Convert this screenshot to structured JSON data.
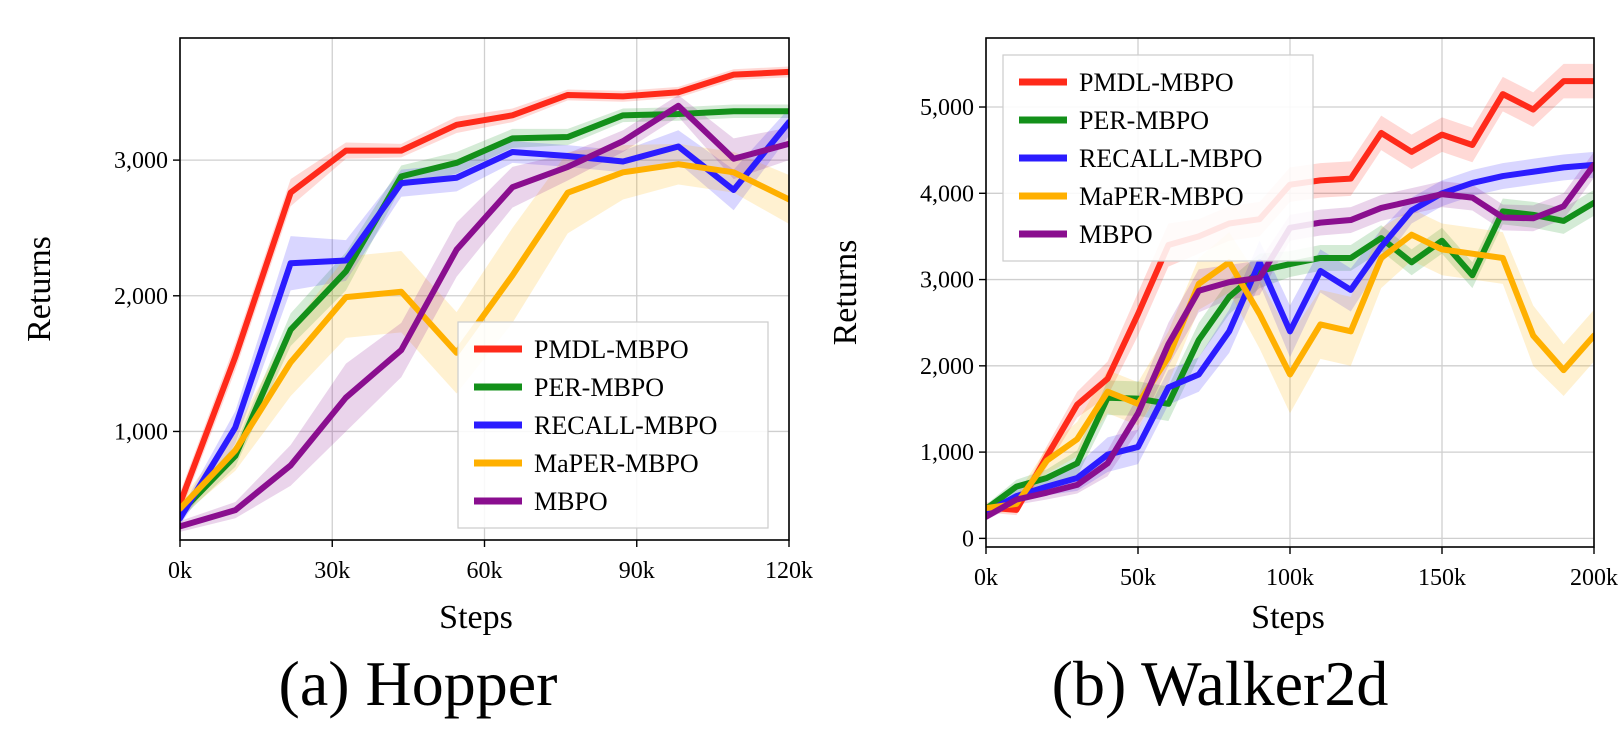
{
  "series_colors": {
    "PMDL-MBPO": "#ff2a1a",
    "PER-MBPO": "#13901a",
    "RECALL-MBPO": "#2b1cff",
    "MaPER-MBPO": "#ffb000",
    "MBPO": "#8a0e8f"
  },
  "chart_data": [
    {
      "type": "line",
      "caption": "(a) Hopper",
      "xlabel": "Steps",
      "ylabel": "Returns",
      "xlim": [
        0,
        120000
      ],
      "ylim": [
        200,
        3900
      ],
      "xticks": [
        0,
        30000,
        60000,
        90000,
        120000
      ],
      "xtick_labels": [
        "0k",
        "30k",
        "60k",
        "90k",
        "120k"
      ],
      "yticks": [
        1000,
        2000,
        3000
      ],
      "ytick_labels": [
        "1,000",
        "2,000",
        "3,000"
      ],
      "grid": true,
      "legend_position": "bottom-right",
      "x": [
        0,
        10900,
        21800,
        32700,
        43600,
        54500,
        65500,
        76400,
        87300,
        98200,
        109100,
        120000
      ],
      "series": [
        {
          "name": "PMDL-MBPO",
          "values": [
            470,
            1550,
            2760,
            3070,
            3070,
            3260,
            3330,
            3480,
            3470,
            3500,
            3630,
            3650
          ],
          "band": [
            80,
            100,
            100,
            60,
            50,
            60,
            50,
            40,
            40,
            40,
            40,
            40
          ]
        },
        {
          "name": "PER-MBPO",
          "values": [
            400,
            820,
            1750,
            2180,
            2880,
            2980,
            3160,
            3170,
            3330,
            3340,
            3360,
            3360
          ],
          "band": [
            50,
            80,
            120,
            140,
            80,
            80,
            70,
            60,
            50,
            50,
            50,
            50
          ]
        },
        {
          "name": "RECALL-MBPO",
          "values": [
            360,
            1030,
            2240,
            2260,
            2830,
            2870,
            3060,
            3030,
            2990,
            3100,
            2780,
            3280
          ],
          "band": [
            50,
            120,
            200,
            150,
            100,
            100,
            80,
            80,
            80,
            120,
            150,
            100
          ]
        },
        {
          "name": "MaPER-MBPO",
          "values": [
            430,
            860,
            1510,
            1990,
            2030,
            1580,
            2150,
            2760,
            2910,
            2970,
            2910,
            2710
          ],
          "band": [
            60,
            150,
            250,
            300,
            300,
            300,
            350,
            300,
            200,
            150,
            150,
            180
          ]
        },
        {
          "name": "MBPO",
          "values": [
            300,
            420,
            750,
            1250,
            1600,
            2340,
            2800,
            2950,
            3140,
            3400,
            3010,
            3120
          ],
          "band": [
            40,
            60,
            150,
            250,
            200,
            200,
            150,
            100,
            80,
            80,
            150,
            120
          ]
        }
      ]
    },
    {
      "type": "line",
      "caption": "(b) Walker2d",
      "xlabel": "Steps",
      "ylabel": "Returns",
      "xlim": [
        0,
        200000
      ],
      "ylim": [
        -100,
        5800
      ],
      "xticks": [
        0,
        50000,
        100000,
        150000,
        200000
      ],
      "xtick_labels": [
        "0k",
        "50k",
        "100k",
        "150k",
        "200k"
      ],
      "yticks": [
        0,
        1000,
        2000,
        3000,
        4000,
        5000
      ],
      "ytick_labels": [
        "0",
        "1,000",
        "2,000",
        "3,000",
        "4,000",
        "5,000"
      ],
      "grid": true,
      "legend_position": "top-left",
      "x": [
        0,
        10000,
        20000,
        30000,
        40000,
        50000,
        60000,
        70000,
        80000,
        90000,
        100000,
        110000,
        120000,
        130000,
        140000,
        150000,
        160000,
        170000,
        180000,
        190000,
        200000
      ],
      "series": [
        {
          "name": "PMDL-MBPO",
          "values": [
            360,
            330,
            950,
            1550,
            1850,
            2600,
            3400,
            3500,
            3650,
            3700,
            4100,
            4150,
            4170,
            4700,
            4480,
            4680,
            4560,
            5150,
            4970,
            5300,
            5300
          ],
          "band": [
            60,
            60,
            120,
            150,
            200,
            250,
            250,
            200,
            200,
            200,
            200,
            200,
            200,
            200,
            200,
            200,
            200,
            200,
            200,
            200,
            200
          ]
        },
        {
          "name": "PER-MBPO",
          "values": [
            340,
            600,
            700,
            870,
            1630,
            1620,
            1560,
            2300,
            2800,
            3100,
            3180,
            3250,
            3250,
            3480,
            3200,
            3450,
            3050,
            3790,
            3750,
            3680,
            3890
          ],
          "band": [
            50,
            80,
            100,
            150,
            200,
            200,
            200,
            200,
            200,
            200,
            150,
            150,
            150,
            150,
            150,
            150,
            150,
            150,
            150,
            150,
            150
          ]
        },
        {
          "name": "RECALL-MBPO",
          "values": [
            300,
            490,
            600,
            700,
            970,
            1060,
            1750,
            1900,
            2400,
            3200,
            2400,
            3100,
            2880,
            3380,
            3800,
            4000,
            4120,
            4200,
            4250,
            4300,
            4330
          ],
          "band": [
            50,
            80,
            100,
            150,
            200,
            200,
            200,
            200,
            250,
            250,
            300,
            250,
            250,
            200,
            150,
            150,
            150,
            150,
            150,
            150,
            150
          ]
        },
        {
          "name": "MaPER-MBPO",
          "values": [
            350,
            400,
            900,
            1150,
            1700,
            1560,
            2100,
            2950,
            3200,
            2600,
            1900,
            2480,
            2400,
            3250,
            3520,
            3350,
            3300,
            3250,
            2350,
            1950,
            2350
          ],
          "band": [
            50,
            100,
            150,
            200,
            250,
            250,
            300,
            300,
            350,
            400,
            450,
            400,
            400,
            350,
            300,
            300,
            300,
            300,
            350,
            300,
            300
          ]
        },
        {
          "name": "MBPO",
          "values": [
            250,
            450,
            530,
            620,
            870,
            1450,
            2250,
            2870,
            2970,
            3020,
            3600,
            3660,
            3690,
            3830,
            3910,
            3990,
            3950,
            3720,
            3710,
            3850,
            4330
          ],
          "band": [
            40,
            60,
            80,
            100,
            150,
            200,
            250,
            250,
            200,
            200,
            150,
            150,
            150,
            150,
            150,
            150,
            150,
            150,
            150,
            150,
            150
          ]
        }
      ]
    }
  ]
}
